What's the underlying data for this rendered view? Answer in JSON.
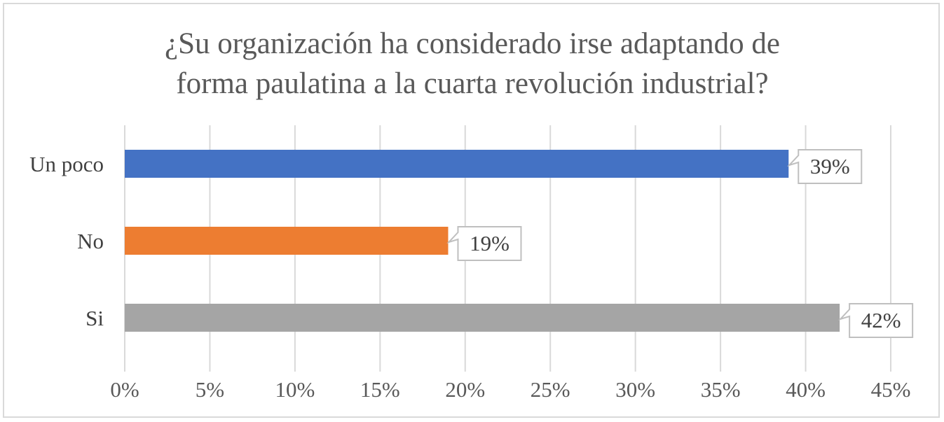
{
  "chart_data": {
    "type": "bar",
    "orientation": "horizontal",
    "title": "¿Su organización ha considerado irse adaptando de forma paulatina a la cuarta revolución industrial?",
    "title_lines": [
      "¿Su organización ha considerado irse adaptando de",
      "forma paulatina a la cuarta revolución industrial?"
    ],
    "categories": [
      "Un poco",
      "No",
      "Si"
    ],
    "values": [
      39,
      19,
      42
    ],
    "data_labels": [
      "39%",
      "19%",
      "42%"
    ],
    "colors": [
      "#4472c4",
      "#ed7d31",
      "#a5a5a5"
    ],
    "xlim": [
      0,
      45
    ],
    "x_ticks": [
      0,
      5,
      10,
      15,
      20,
      25,
      30,
      35,
      40,
      45
    ],
    "x_tick_labels": [
      "0%",
      "5%",
      "10%",
      "15%",
      "20%",
      "25%",
      "30%",
      "35%",
      "40%",
      "45%"
    ],
    "xlabel": "",
    "ylabel": "",
    "grid": true,
    "legend": "none"
  }
}
